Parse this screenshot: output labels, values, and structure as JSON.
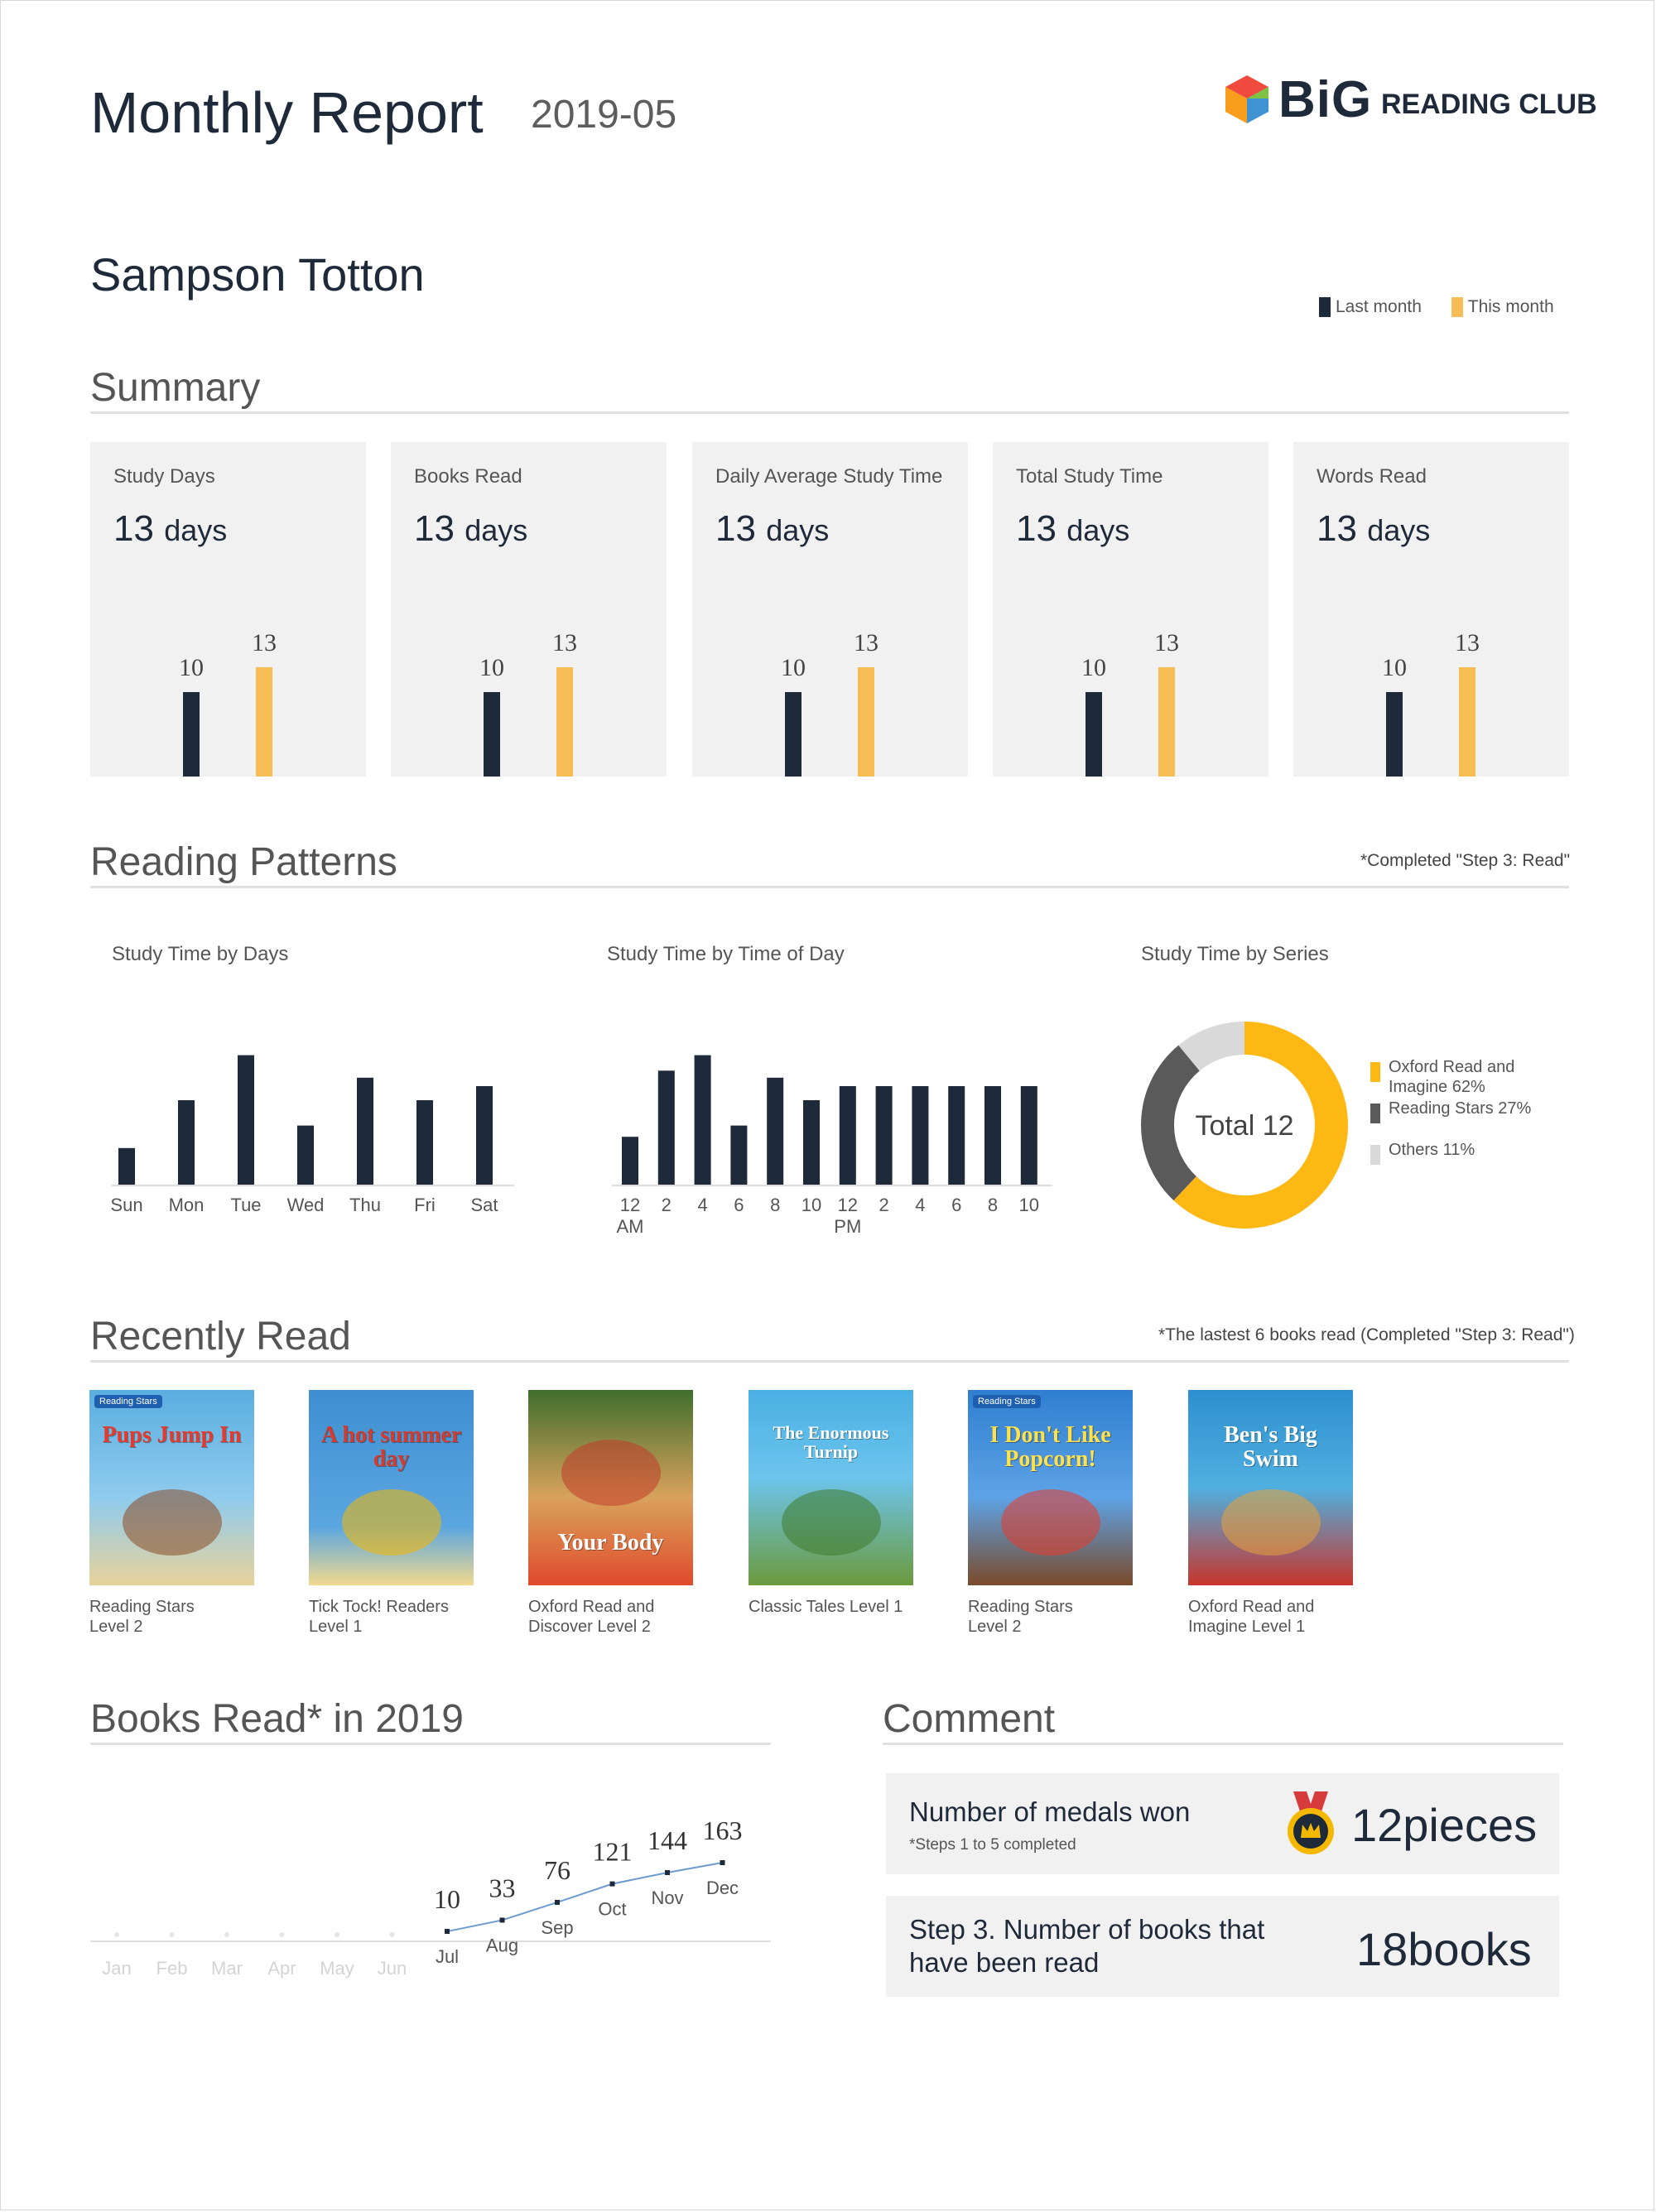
{
  "header": {
    "title": "Monthly Report",
    "period": "2019-05",
    "logo_big": "BiG",
    "logo_club": "READING CLUB"
  },
  "student_name": "Sampson Totton",
  "legend": {
    "last_month": "Last month",
    "this_month": "This month",
    "last_color": "#1e2a3a",
    "this_color": "#f5bd53"
  },
  "summary": {
    "title": "Summary",
    "cards": [
      {
        "label": "Study Days",
        "value": "13",
        "unit": "days",
        "last": 10,
        "this": 13
      },
      {
        "label": "Books Read",
        "value": "13",
        "unit": "days",
        "last": 10,
        "this": 13
      },
      {
        "label": "Daily Average Study Time",
        "value": "13",
        "unit": "days",
        "last": 10,
        "this": 13
      },
      {
        "label": "Total Study Time",
        "value": "13",
        "unit": "days",
        "last": 10,
        "this": 13
      },
      {
        "label": "Words Read",
        "value": "13",
        "unit": "days",
        "last": 10,
        "this": 13
      }
    ]
  },
  "patterns": {
    "title": "Reading Patterns",
    "note": "*Completed \"Step 3: Read\"",
    "by_days_title": "Study Time by Days",
    "by_time_title": "Study Time by Time of Day",
    "by_series_title": "Study Time by Series",
    "donut_center": "Total 12"
  },
  "recent": {
    "title": "Recently Read",
    "note": "*The lastest 6 books read (Completed \"Step 3: Read\")",
    "books": [
      {
        "cover_title": "Pups Jump In",
        "caption": "Reading Stars\nLevel 2",
        "badge": "Reading Stars"
      },
      {
        "cover_title": "A hot summer day",
        "caption": "Tick Tock! Readers\nLevel 1",
        "badge": ""
      },
      {
        "cover_title": "Your Body",
        "caption": "Oxford Read and\nDiscover Level 2",
        "badge": ""
      },
      {
        "cover_title": "The Enormous Turnip",
        "caption": "Classic Tales Level 1",
        "badge": ""
      },
      {
        "cover_title": "I Don't Like Popcorn!",
        "caption": "Reading Stars\nLevel 2",
        "badge": "Reading Stars"
      },
      {
        "cover_title": "Ben's Big Swim",
        "caption": "Oxford Read and\nImagine Level 1",
        "badge": ""
      }
    ]
  },
  "yearly": {
    "title": "Books Read* in 2019"
  },
  "comment": {
    "title": "Comment",
    "medals_label": "Number of medals won",
    "medals_note": "*Steps 1 to 5 completed",
    "medals_value": "12pieces",
    "books_label_1": "Step 3. Number of books that",
    "books_label_2": "have been read",
    "books_value": "18books"
  },
  "chart_data": [
    {
      "type": "bar",
      "title": "Study Time by Days",
      "categories": [
        "Sun",
        "Mon",
        "Tue",
        "Wed",
        "Thu",
        "Fri",
        "Sat"
      ],
      "values": [
        2.6,
        6,
        9.2,
        4.2,
        7.6,
        6,
        7
      ],
      "ylim": [
        0,
        10
      ],
      "color": "#1e2a3a"
    },
    {
      "type": "bar",
      "title": "Study Time by Time of Day",
      "categories": [
        "12\nAM",
        "2",
        "4",
        "6",
        "8",
        "10",
        "12\nPM",
        "2",
        "4",
        "6",
        "8",
        "10"
      ],
      "series_values": [
        3.4,
        8.1,
        9.2,
        4.2,
        7.6,
        6,
        7,
        7,
        7,
        7,
        7,
        7
      ],
      "ylim": [
        0,
        10
      ],
      "color": "#1e2a3a"
    },
    {
      "type": "pie",
      "title": "Study Time by Series",
      "slices": [
        {
          "name": "Oxford Read and Imagine 62%",
          "value": 62,
          "color": "#fdb813"
        },
        {
          "name": "Reading Stars 27%",
          "value": 27,
          "color": "#5a5a5a"
        },
        {
          "name": "Others 11%",
          "value": 11,
          "color": "#d9d9d9"
        }
      ]
    },
    {
      "type": "line",
      "title": "Books Read* in 2019",
      "x": [
        "Jan",
        "Feb",
        "Mar",
        "Apr",
        "May",
        "Jun",
        "Jul",
        "Aug",
        "Sep",
        "Oct",
        "Nov",
        "Dec"
      ],
      "y": [
        null,
        null,
        null,
        null,
        null,
        null,
        10,
        33,
        76,
        121,
        144,
        163
      ],
      "labels": [
        "",
        "",
        "",
        "",
        "",
        "",
        "10",
        "33",
        "76",
        "121",
        "144",
        "163"
      ],
      "color": "#6b9bd1"
    }
  ]
}
